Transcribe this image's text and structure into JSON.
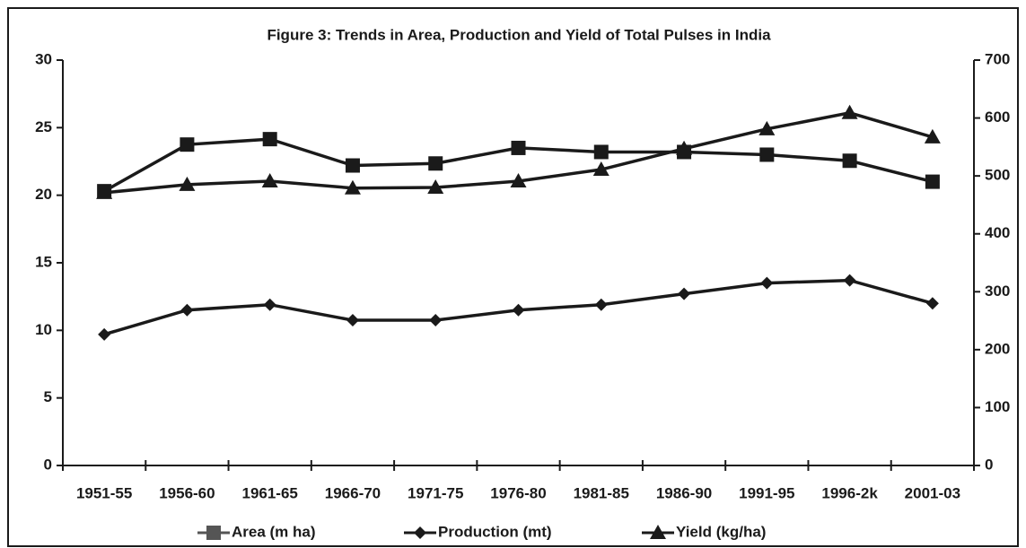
{
  "chart_data": {
    "type": "line",
    "title": "Figure 3: Trends in Area, Production and Yield of Total Pulses in India",
    "categories": [
      "1951-55",
      "1956-60",
      "1961-65",
      "1966-70",
      "1971-75",
      "1976-80",
      "1981-85",
      "1986-90",
      "1991-95",
      "1996-2k",
      "2001-03"
    ],
    "series": [
      {
        "name": "Area (m ha)",
        "color": "#1a1a1a",
        "legend_color": "#555555",
        "marker": "square",
        "axis": "y",
        "values": [
          20.3,
          23.75,
          24.15,
          22.2,
          22.35,
          23.5,
          23.2,
          23.2,
          23.0,
          22.55,
          21.0
        ]
      },
      {
        "name": "Production (mt)",
        "color": "#1a1a1a",
        "marker": "diamond",
        "axis": "y",
        "values": [
          9.7,
          11.5,
          11.9,
          10.75,
          10.75,
          11.5,
          11.9,
          12.7,
          13.5,
          13.7,
          12.0
        ]
      },
      {
        "name": "Yield (kg/ha)",
        "color": "#1a1a1a",
        "marker": "triangle",
        "axis": "y2",
        "values": [
          471,
          485,
          491,
          479,
          480,
          491,
          511,
          547,
          581,
          609,
          567
        ]
      }
    ],
    "ylim": [
      0,
      30
    ],
    "yticks": [
      0,
      5,
      10,
      15,
      20,
      25,
      30
    ],
    "y2lim": [
      0,
      700
    ],
    "y2ticks": [
      0,
      100,
      200,
      300,
      400,
      500,
      600,
      700
    ],
    "grid": false,
    "legend": "bottom"
  }
}
